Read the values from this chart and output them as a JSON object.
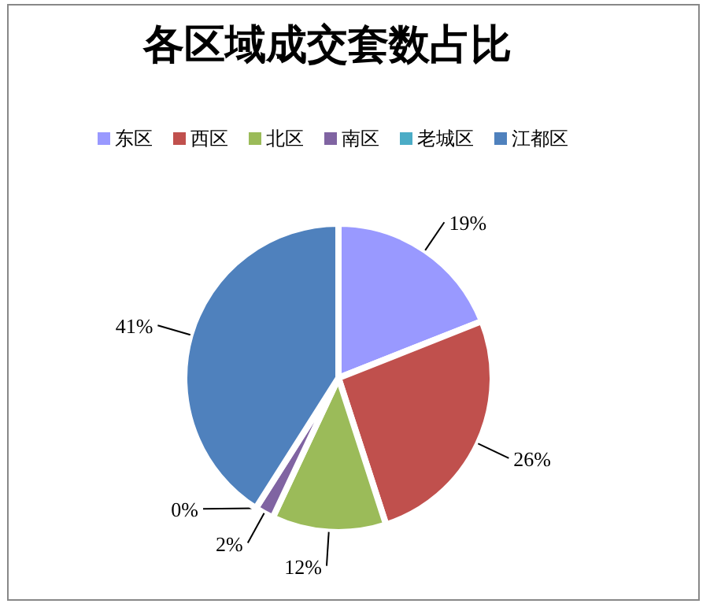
{
  "chart_data": {
    "type": "pie",
    "title": "各区域成交套数占比",
    "categories": [
      "东区",
      "西区",
      "北区",
      "南区",
      "老城区",
      "江都区"
    ],
    "values": [
      19,
      26,
      12,
      2,
      0,
      41
    ],
    "value_labels": [
      "19%",
      "26%",
      "12%",
      "2%",
      "0%",
      "41%"
    ],
    "colors": [
      "#9999ff",
      "#c0504d",
      "#9bbb59",
      "#8064a2",
      "#4bacc6",
      "#4f81bd"
    ],
    "legend": "top"
  }
}
